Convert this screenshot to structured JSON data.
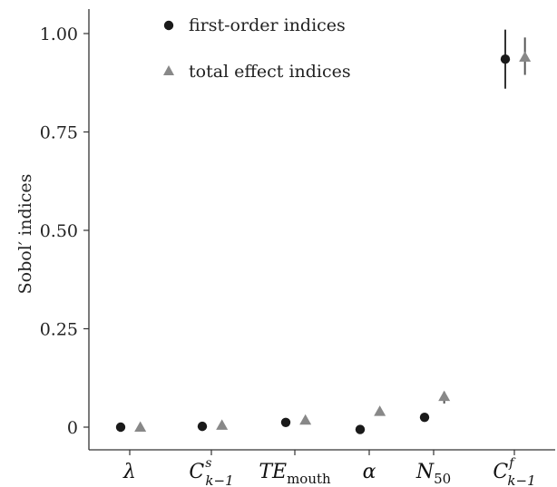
{
  "chart_data": {
    "type": "scatter",
    "ylabel": "Sobol′ indices",
    "xlabel": "",
    "ylim": [
      -0.04,
      1.06
    ],
    "y_ticks": [
      "0",
      "0.25",
      "0.50",
      "0.75",
      "1.00"
    ],
    "y_tick_values": [
      0,
      0.25,
      0.5,
      0.75,
      1.0
    ],
    "grid": false,
    "legend_position": "top-left",
    "categories": [
      {
        "id": "lambda",
        "main": "λ",
        "sub": "",
        "sup": ""
      },
      {
        "id": "Cs",
        "main": "C",
        "sub": "k−1",
        "sup": "s"
      },
      {
        "id": "TE",
        "main": "TE",
        "sub": "mouth",
        "sup": ""
      },
      {
        "id": "alpha",
        "main": "α",
        "sub": "",
        "sup": ""
      },
      {
        "id": "N50",
        "main": "N",
        "sub": "50",
        "sup": ""
      },
      {
        "id": "Cf",
        "main": "C",
        "sub": "k−1",
        "sup": "f"
      }
    ],
    "series": [
      {
        "name": "first-order indices",
        "marker": "circle",
        "color": "#1a1a1a",
        "values": [
          0.0,
          0.002,
          0.012,
          -0.006,
          0.025,
          0.935
        ],
        "lower": [
          0.0,
          0.002,
          0.012,
          -0.006,
          0.025,
          0.86
        ],
        "upper": [
          0.0,
          0.002,
          0.012,
          -0.006,
          0.025,
          1.01
        ]
      },
      {
        "name": "total effect indices",
        "marker": "triangle",
        "color": "#888888",
        "values": [
          0.0,
          0.005,
          0.018,
          0.04,
          0.078,
          0.94
        ],
        "lower": [
          0.0,
          0.005,
          0.018,
          0.04,
          0.06,
          0.895
        ],
        "upper": [
          0.0,
          0.005,
          0.018,
          0.04,
          0.09,
          0.99
        ]
      }
    ]
  }
}
